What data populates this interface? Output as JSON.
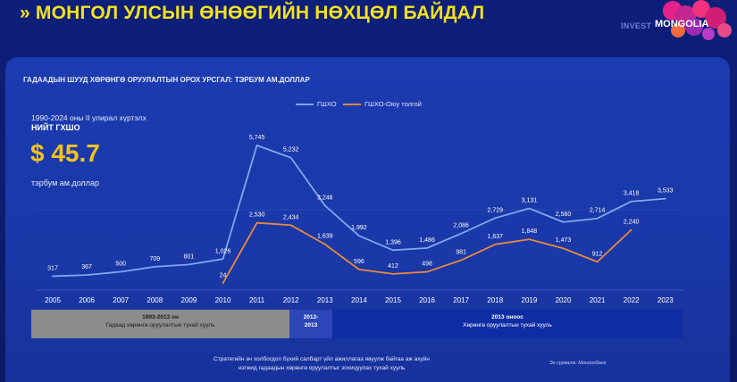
{
  "header": {
    "title": "» МОНГОЛ УЛСЫН ӨНӨӨГИЙН НӨХЦӨЛ БАЙДАЛ",
    "logo_invest": "INVEST",
    "logo_mongolia": "MONGOLIA"
  },
  "panel": {
    "subtitle": "ГАДААДЫН ШУУД ХӨРӨНГӨ ОРУУЛАЛТЫН ОРОХ УРСГАЛ: ТЭРБУМ АМ.ДОЛЛАР",
    "period": "1990-2024 оны II улирал хүртэлх",
    "total_label": "НИЙТ ГХШО",
    "total_value": "$ 45.7",
    "unit": "тэрбум ам.доллар"
  },
  "periods": [
    {
      "title": "1993-2013 он",
      "subtitle": "Гадаад хөрөнгө оруулалтын тухай хууль"
    },
    {
      "title": "2012-\n2013",
      "subtitle": ""
    },
    {
      "title": "2013 оноос",
      "subtitle": "Хөрөнгө оруулалтын тухай хууль"
    }
  ],
  "footnote": {
    "line1": "Стратегийн ач холбогдол бүхий салбарт үйл ажиллагаа явуулж байгаа аж ахуйн",
    "line2": "нэгжид гадаадын хөрөнгө оруулалтыг зохицуулах тухай хууль"
  },
  "source": "Эх сурвалж: Монголбанк",
  "colors": {
    "title": "#f3e21c",
    "series_fdi": "#7fa8ee",
    "series_ot": "#e98a3a",
    "highlight": "#f3c21c"
  },
  "chart_data": {
    "type": "line",
    "title": "ГАДААДЫН ШУУД ХӨРӨНГӨ ОРУУЛАЛТЫН ОРОХ УРСГАЛ: ТЭРБУМ АМ.ДОЛЛАР",
    "xlabel": "",
    "ylabel": "",
    "grid": false,
    "legend_position": "top",
    "x": [
      "2005",
      "2006",
      "2007",
      "2008",
      "2009",
      "2010",
      "2011",
      "2012",
      "2013",
      "2014",
      "2015",
      "2016",
      "2017",
      "2018",
      "2019",
      "2020",
      "2021",
      "2022",
      "2023"
    ],
    "series": [
      {
        "name": "ГШХО",
        "values": [
          317,
          367,
          500,
          709,
          801,
          1026,
          5745,
          5232,
          3246,
          1992,
          1396,
          1486,
          2086,
          2729,
          3131,
          2560,
          2714,
          3418,
          3533
        ],
        "labels": [
          "317",
          "367",
          "500",
          "709",
          "801",
          "1,026",
          "5,745",
          "5,232",
          "3,246",
          "1,992",
          "1,396",
          "1,486",
          "2,086",
          "2,729",
          "3,131",
          "2,560",
          "2,714",
          "3,418",
          "3,533"
        ]
      },
      {
        "name": "ГШХО-Оюу толгой",
        "values": [
          null,
          null,
          null,
          null,
          null,
          24,
          2530,
          2434,
          1639,
          596,
          412,
          498,
          981,
          1637,
          1848,
          1473,
          912,
          2240,
          null
        ],
        "labels": [
          "",
          "",
          "",
          "",
          "",
          "24",
          "2,530",
          "2,434",
          "1,639",
          "596",
          "412",
          "498",
          "981",
          "1,637",
          "1,848",
          "1,473",
          "912",
          "2,240",
          ""
        ]
      }
    ],
    "ylim": [
      0,
      6000
    ]
  }
}
